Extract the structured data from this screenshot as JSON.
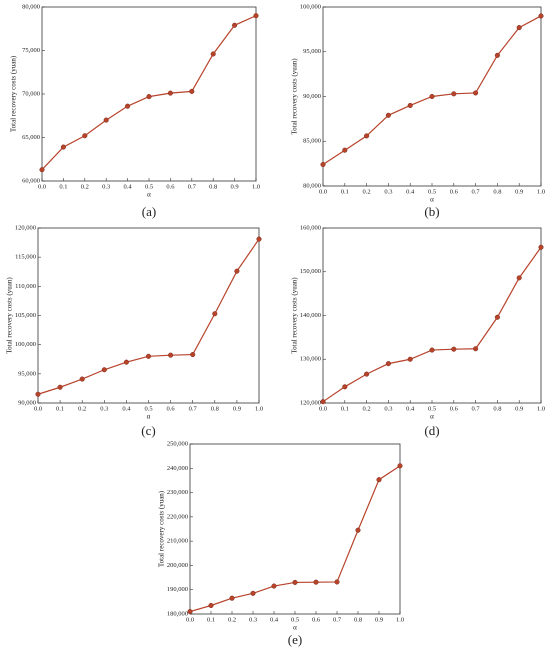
{
  "chart_data": [
    {
      "type": "line",
      "caption": "(a)",
      "xlabel": "α",
      "ylabel": "Total recovery costs (yuan)",
      "color": "#b8432b",
      "x": [
        0,
        0.1,
        0.2,
        0.3,
        0.4,
        0.5,
        0.6,
        0.7,
        0.8,
        0.9,
        1
      ],
      "values": [
        61300,
        63900,
        65200,
        67000,
        68600,
        69700,
        70100,
        70300,
        74600,
        77900,
        79000
      ],
      "xlim": [
        0,
        1
      ],
      "ylim": [
        60000,
        80000
      ],
      "xticks": [
        {
          "value": 0,
          "label": "0.0"
        },
        0.1,
        0.2,
        0.3,
        0.4,
        0.5,
        0.6,
        0.7,
        0.8,
        0.9,
        {
          "value": 1,
          "label": "1.0"
        }
      ],
      "yticks": [
        {
          "value": 60000,
          "label": "60,000"
        },
        {
          "value": 65000,
          "label": "65,000"
        },
        {
          "value": 70000,
          "label": "70,000"
        },
        {
          "value": 75000,
          "label": "75,000"
        },
        {
          "value": 80000,
          "label": "80,000"
        }
      ]
    },
    {
      "type": "line",
      "caption": "(b)",
      "xlabel": "α",
      "ylabel": "Total recovery costs (yuan)",
      "color": "#b8432b",
      "x": [
        0,
        0.1,
        0.2,
        0.3,
        0.4,
        0.5,
        0.6,
        0.7,
        0.8,
        0.9,
        1
      ],
      "values": [
        82400,
        84000,
        85600,
        87900,
        89000,
        90000,
        90300,
        90400,
        94600,
        97700,
        99000
      ],
      "xlim": [
        0,
        1
      ],
      "ylim": [
        80000,
        100000
      ],
      "xticks": [
        {
          "value": 0,
          "label": "0.0"
        },
        0.1,
        0.2,
        0.3,
        0.4,
        0.5,
        0.6,
        0.7,
        0.8,
        0.9,
        {
          "value": 1,
          "label": "1.0"
        }
      ],
      "yticks": [
        {
          "value": 80000,
          "label": "80,000"
        },
        {
          "value": 85000,
          "label": "85,000"
        },
        {
          "value": 90000,
          "label": "90,000"
        },
        {
          "value": 95000,
          "label": "95,000"
        },
        {
          "value": 100000,
          "label": "100,000"
        }
      ]
    },
    {
      "type": "line",
      "caption": "(c)",
      "xlabel": "α",
      "ylabel": "Total recovery costs (yuan)",
      "color": "#b8432b",
      "x": [
        0,
        0.1,
        0.2,
        0.3,
        0.4,
        0.5,
        0.6,
        0.7,
        0.8,
        0.9,
        1
      ],
      "values": [
        91500,
        92700,
        94100,
        95700,
        97000,
        98000,
        98200,
        98300,
        105300,
        112600,
        118100
      ],
      "xlim": [
        0,
        1
      ],
      "ylim": [
        90000,
        120000
      ],
      "xticks": [
        {
          "value": 0,
          "label": "0.0"
        },
        0.1,
        0.2,
        0.3,
        0.4,
        0.5,
        0.6,
        0.7,
        0.8,
        0.9,
        {
          "value": 1,
          "label": "1.0"
        }
      ],
      "yticks": [
        {
          "value": 90000,
          "label": "90,000"
        },
        {
          "value": 95000,
          "label": "95,000"
        },
        {
          "value": 100000,
          "label": "100,000"
        },
        {
          "value": 105000,
          "label": "105,000"
        },
        {
          "value": 110000,
          "label": "110,000"
        },
        {
          "value": 115000,
          "label": "115,000"
        },
        {
          "value": 120000,
          "label": "120,000"
        }
      ]
    },
    {
      "type": "line",
      "caption": "(d)",
      "xlabel": "α",
      "ylabel": "Total recovery costs (yuan)",
      "color": "#b8432b",
      "x": [
        0,
        0.1,
        0.2,
        0.3,
        0.4,
        0.5,
        0.6,
        0.7,
        0.8,
        0.9,
        1
      ],
      "values": [
        120300,
        123700,
        126600,
        129000,
        130000,
        132100,
        132300,
        132400,
        139600,
        148600,
        155600
      ],
      "xlim": [
        0,
        1
      ],
      "ylim": [
        120000,
        160000
      ],
      "xticks": [
        {
          "value": 0,
          "label": "0.0"
        },
        0.1,
        0.2,
        0.3,
        0.4,
        0.5,
        0.6,
        0.7,
        0.8,
        0.9,
        {
          "value": 1,
          "label": "1.0"
        }
      ],
      "yticks": [
        {
          "value": 120000,
          "label": "120,000"
        },
        {
          "value": 130000,
          "label": "130,000"
        },
        {
          "value": 140000,
          "label": "140,000"
        },
        {
          "value": 150000,
          "label": "150,000"
        },
        {
          "value": 160000,
          "label": "160,000"
        }
      ]
    },
    {
      "type": "line",
      "caption": "(e)",
      "xlabel": "α",
      "ylabel": "Total recovery costs (yuan)",
      "color": "#b8432b",
      "x": [
        0,
        0.1,
        0.2,
        0.3,
        0.4,
        0.5,
        0.6,
        0.7,
        0.8,
        0.9,
        1
      ],
      "values": [
        181000,
        183500,
        186500,
        188500,
        191500,
        193000,
        193100,
        193200,
        214500,
        235300,
        241000
      ],
      "xlim": [
        0,
        1
      ],
      "ylim": [
        180000,
        250000
      ],
      "xticks": [
        {
          "value": 0,
          "label": "0.0"
        },
        0.1,
        0.2,
        0.3,
        0.4,
        0.5,
        0.6,
        0.7,
        0.8,
        0.9,
        {
          "value": 1,
          "label": "1.0"
        }
      ],
      "yticks": [
        {
          "value": 180000,
          "label": "180,000"
        },
        {
          "value": 190000,
          "label": "190,000"
        },
        {
          "value": 200000,
          "label": "200,000"
        },
        {
          "value": 210000,
          "label": "210,000"
        },
        {
          "value": 220000,
          "label": "220,000"
        },
        {
          "value": 230000,
          "label": "230,000"
        },
        {
          "value": 240000,
          "label": "240,000"
        },
        {
          "value": 250000,
          "label": "250,000"
        }
      ]
    }
  ]
}
